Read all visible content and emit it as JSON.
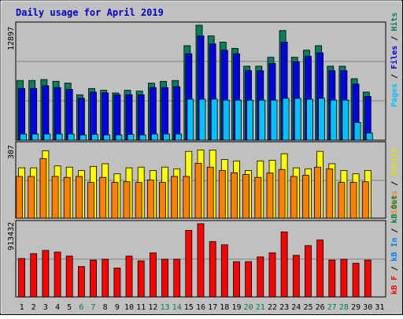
{
  "title": "Daily usage for April 2019",
  "colors": {
    "frame_bg": "#c0c0c0",
    "plot_bg": "#c0c0c0",
    "title": "#0000c0",
    "hits": "#00805c",
    "files": "#0000e0",
    "pages": "#00c0ff",
    "visits": "#ffff00",
    "sites": "#ff8000",
    "kb_in": "#0080ff",
    "kb_out": "#008040",
    "kb_f": "#ff0000",
    "weekend_label": "#008040",
    "weekday_label": "#000000",
    "grid": "#808080"
  },
  "days": [
    "1",
    "2",
    "3",
    "4",
    "5",
    "6",
    "7",
    "8",
    "9",
    "10",
    "11",
    "12",
    "13",
    "14",
    "15",
    "16",
    "17",
    "18",
    "19",
    "20",
    "21",
    "22",
    "23",
    "24",
    "25",
    "26",
    "27",
    "28",
    "29",
    "30",
    "31"
  ],
  "weekend_days": [
    "6",
    "7",
    "13",
    "14",
    "20",
    "21",
    "27",
    "28"
  ],
  "panels": {
    "top": {
      "max_label": "12897",
      "legend": [
        {
          "text": "Pages",
          "color": "#00c0ff"
        },
        {
          "text": " / ",
          "color": "#000000"
        },
        {
          "text": "Files",
          "color": "#0000e0"
        },
        {
          "text": " / ",
          "color": "#000000"
        },
        {
          "text": "Hits",
          "color": "#00805c"
        }
      ]
    },
    "middle": {
      "max_label": "307",
      "legend": [
        {
          "text": "Sites",
          "color": "#ff8000"
        },
        {
          "text": " / ",
          "color": "#000000"
        },
        {
          "text": "Visits",
          "color": "#e0e000"
        }
      ]
    },
    "bottom": {
      "max_label": "913432",
      "legend": [
        {
          "text": "kB F",
          "color": "#ff0000"
        },
        {
          "text": " / ",
          "color": "#000000"
        },
        {
          "text": "kB In",
          "color": "#0080ff"
        },
        {
          "text": " / ",
          "color": "#000000"
        },
        {
          "text": "kB Out",
          "color": "#008040"
        }
      ]
    }
  },
  "chart_data": {
    "type": "bar",
    "title": "Daily usage for April 2019",
    "categories": [
      "1",
      "2",
      "3",
      "4",
      "5",
      "6",
      "7",
      "8",
      "9",
      "10",
      "11",
      "12",
      "13",
      "14",
      "15",
      "16",
      "17",
      "18",
      "19",
      "20",
      "21",
      "22",
      "23",
      "24",
      "25",
      "26",
      "27",
      "28",
      "29",
      "30"
    ],
    "panels": [
      {
        "panel": "top",
        "ylim": [
          0,
          12897
        ],
        "series": [
          {
            "name": "Hits",
            "values": [
              6700,
              6700,
              6800,
              6600,
              6400,
              5100,
              5800,
              5600,
              5300,
              5600,
              5500,
              6400,
              6600,
              6700,
              10600,
              12897,
              11700,
              11000,
              10300,
              8300,
              8300,
              9300,
              12300,
              9300,
              10100,
              10600,
              8300,
              8300,
              6900,
              5400
            ]
          },
          {
            "name": "Files",
            "values": [
              5800,
              5800,
              6100,
              5900,
              5700,
              4700,
              5400,
              5300,
              5100,
              5100,
              5100,
              5900,
              5900,
              6000,
              9700,
              11700,
              10800,
              10100,
              9700,
              7800,
              7800,
              8600,
              11000,
              8800,
              9400,
              9800,
              7800,
              7800,
              6300,
              4900
            ]
          },
          {
            "name": "Pages",
            "values": [
              700,
              700,
              700,
              700,
              700,
              600,
              650,
              600,
              600,
              650,
              600,
              700,
              700,
              700,
              4600,
              4600,
              4600,
              4500,
              4500,
              4500,
              4500,
              4500,
              4700,
              4700,
              4600,
              4700,
              4500,
              4500,
              2000,
              800
            ]
          }
        ]
      },
      {
        "panel": "middle",
        "ylim": [
          0,
          307
        ],
        "series": [
          {
            "name": "Visits",
            "values": [
              211,
              211,
              283,
              219,
              214,
              200,
              217,
              228,
              186,
              211,
              214,
              200,
              214,
              207,
              280,
              286,
              286,
              246,
              240,
              200,
              240,
              243,
              270,
              211,
              207,
              280,
              228,
              200,
              186,
              200
            ]
          },
          {
            "name": "Sites",
            "values": [
              175,
              175,
              250,
              175,
              171,
              175,
              150,
              171,
              150,
              153,
              150,
              160,
              150,
              175,
              175,
              230,
              214,
              200,
              190,
              183,
              171,
              189,
              204,
              175,
              180,
              214,
              207,
              150,
              150,
              153
            ]
          }
        ]
      },
      {
        "panel": "bottom",
        "ylim": [
          0,
          913432
        ],
        "series": [
          {
            "name": "kB F",
            "values": [
              480000,
              540000,
              580000,
              560000,
              510000,
              380000,
              460000,
              470000,
              360000,
              510000,
              450000,
              550000,
              470000,
              470000,
              830000,
              913432,
              690000,
              650000,
              440000,
              440000,
              500000,
              550000,
              810000,
              520000,
              640000,
              710000,
              460000,
              470000,
              420000,
              460000
            ]
          }
        ]
      }
    ]
  }
}
